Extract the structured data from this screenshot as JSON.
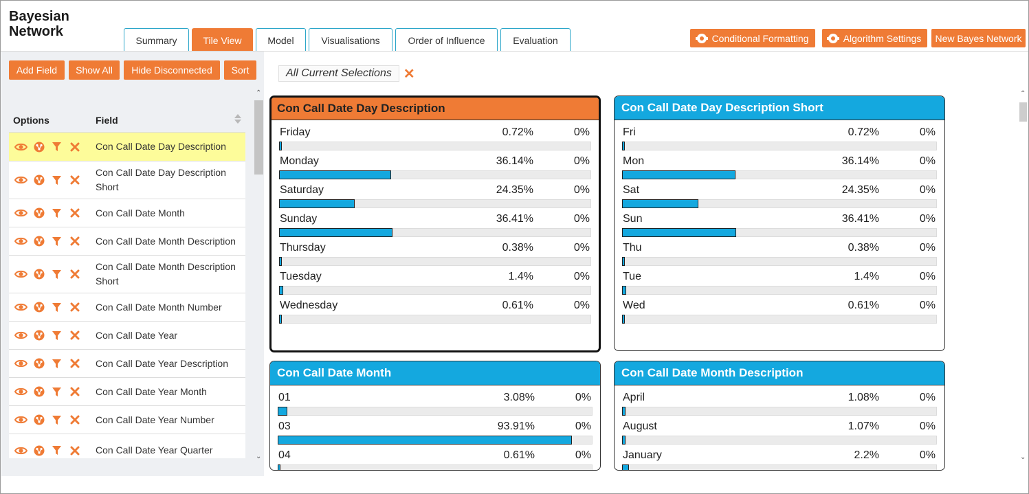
{
  "app": {
    "title_line1": "Bayesian",
    "title_line2": "Network"
  },
  "tabs": [
    {
      "label": "Summary",
      "active": false
    },
    {
      "label": "Tile View",
      "active": true
    },
    {
      "label": "Model",
      "active": false
    },
    {
      "label": "Visualisations",
      "active": false
    },
    {
      "label": "Order of Influence",
      "active": false
    },
    {
      "label": "Evaluation",
      "active": false
    }
  ],
  "top_buttons": {
    "conditional_formatting": "Conditional Formatting",
    "algorithm_settings": "Algorithm Settings",
    "new_bayes_network": "New Bayes Network"
  },
  "left_panel": {
    "buttons": {
      "add_field": "Add Field",
      "show_all": "Show All",
      "hide_disconnected": "Hide Disconnected",
      "sort": "Sort"
    },
    "headers": {
      "options": "Options",
      "field": "Field"
    },
    "fields": [
      {
        "label": "Con Call Date Day Description",
        "selected": true
      },
      {
        "label": "Con Call Date Day Description Short",
        "selected": false
      },
      {
        "label": "Con Call Date Month",
        "selected": false
      },
      {
        "label": "Con Call Date Month Description",
        "selected": false
      },
      {
        "label": "Con Call Date Month Description Short",
        "selected": false
      },
      {
        "label": "Con Call Date Month Number",
        "selected": false
      },
      {
        "label": "Con Call Date Year",
        "selected": false
      },
      {
        "label": "Con Call Date Year Description",
        "selected": false
      },
      {
        "label": "Con Call Date Year Month",
        "selected": false
      },
      {
        "label": "Con Call Date Year Number",
        "selected": false
      },
      {
        "label": "Con Call Date Year Quarter",
        "selected": false
      }
    ],
    "icon_names": [
      "eye-icon",
      "network-node-icon",
      "filter-icon",
      "close-icon"
    ]
  },
  "selections": {
    "label": "All Current Selections"
  },
  "tiles": [
    {
      "title": "Con Call Date Day Description",
      "active": true,
      "rows": [
        {
          "name": "Friday",
          "pct": "0.72%",
          "sel": "0%",
          "value": 0.72
        },
        {
          "name": "Monday",
          "pct": "36.14%",
          "sel": "0%",
          "value": 36.14
        },
        {
          "name": "Saturday",
          "pct": "24.35%",
          "sel": "0%",
          "value": 24.35
        },
        {
          "name": "Sunday",
          "pct": "36.41%",
          "sel": "0%",
          "value": 36.41
        },
        {
          "name": "Thursday",
          "pct": "0.38%",
          "sel": "0%",
          "value": 0.38
        },
        {
          "name": "Tuesday",
          "pct": "1.4%",
          "sel": "0%",
          "value": 1.4
        },
        {
          "name": "Wednesday",
          "pct": "0.61%",
          "sel": "0%",
          "value": 0.61
        }
      ]
    },
    {
      "title": "Con Call Date Day Description Short",
      "active": false,
      "rows": [
        {
          "name": "Fri",
          "pct": "0.72%",
          "sel": "0%",
          "value": 0.72
        },
        {
          "name": "Mon",
          "pct": "36.14%",
          "sel": "0%",
          "value": 36.14
        },
        {
          "name": "Sat",
          "pct": "24.35%",
          "sel": "0%",
          "value": 24.35
        },
        {
          "name": "Sun",
          "pct": "36.41%",
          "sel": "0%",
          "value": 36.41
        },
        {
          "name": "Thu",
          "pct": "0.38%",
          "sel": "0%",
          "value": 0.38
        },
        {
          "name": "Tue",
          "pct": "1.4%",
          "sel": "0%",
          "value": 1.4
        },
        {
          "name": "Wed",
          "pct": "0.61%",
          "sel": "0%",
          "value": 0.61
        }
      ]
    },
    {
      "title": "Con Call Date Month",
      "active": false,
      "rows": [
        {
          "name": "01",
          "pct": "3.08%",
          "sel": "0%",
          "value": 3.08
        },
        {
          "name": "03",
          "pct": "93.91%",
          "sel": "0%",
          "value": 93.91
        },
        {
          "name": "04",
          "pct": "0.61%",
          "sel": "0%",
          "value": 0.61
        }
      ]
    },
    {
      "title": "Con Call Date Month Description",
      "active": false,
      "rows": [
        {
          "name": "April",
          "pct": "1.08%",
          "sel": "0%",
          "value": 1.08
        },
        {
          "name": "August",
          "pct": "1.07%",
          "sel": "0%",
          "value": 1.07
        },
        {
          "name": "January",
          "pct": "2.2%",
          "sel": "0%",
          "value": 2.2
        }
      ]
    }
  ],
  "colors": {
    "accent": "#ef7b35",
    "tile_header": "#14a8df",
    "bar_fill": "#14a8df",
    "selected_row": "#fdfc9a"
  }
}
